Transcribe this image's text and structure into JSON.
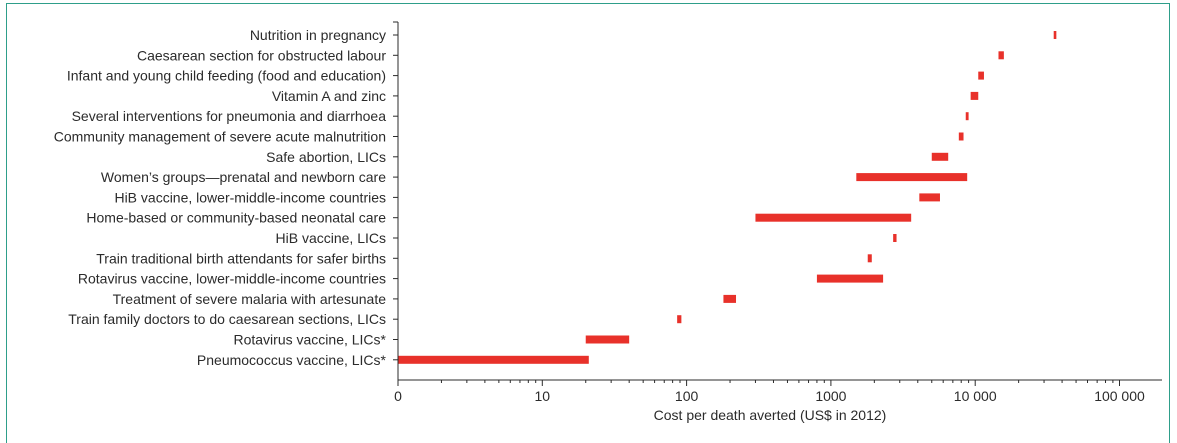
{
  "chart_data": {
    "type": "bar",
    "orientation": "horizontal-range",
    "xlabel": "Cost per death averted (US$ in 2012)",
    "x_scale": "log",
    "xlim": [
      1,
      200000
    ],
    "x_ticks": [
      {
        "value": 1,
        "label": "0"
      },
      {
        "value": 10,
        "label": "10"
      },
      {
        "value": 100,
        "label": "100"
      },
      {
        "value": 1000,
        "label": "1000"
      },
      {
        "value": 10000,
        "label": "10 000"
      },
      {
        "value": 100000,
        "label": "100 000"
      }
    ],
    "color": "#e8312a",
    "series": [
      {
        "category": "Nutrition in pregnancy",
        "low": 35000,
        "high": 36500
      },
      {
        "category": "Caesarean section for obstructed labour",
        "low": 14500,
        "high": 15800
      },
      {
        "category": "Infant and young child feeding (food and education)",
        "low": 10500,
        "high": 11500
      },
      {
        "category": "Vitamin A and zinc",
        "low": 9300,
        "high": 10500
      },
      {
        "category": "Several interventions for pneumonia and diarrhoea",
        "low": 8600,
        "high": 9000
      },
      {
        "category": "Community management of severe acute malnutrition",
        "low": 7700,
        "high": 8300
      },
      {
        "category": "Safe abortion, LICs",
        "low": 5000,
        "high": 6500
      },
      {
        "category": "Women’s groups—prenatal and newborn care",
        "low": 1500,
        "high": 8800
      },
      {
        "category": "HiB vaccine, lower-middle-income countries",
        "low": 4100,
        "high": 5700
      },
      {
        "category": "Home-based or community-based neonatal care",
        "low": 300,
        "high": 3600
      },
      {
        "category": "HiB vaccine, LICs",
        "low": 2700,
        "high": 2850
      },
      {
        "category": "Train traditional birth attendants for safer births",
        "low": 1800,
        "high": 1920
      },
      {
        "category": "Rotavirus vaccine, lower-middle-income countries",
        "low": 800,
        "high": 2300
      },
      {
        "category": "Treatment of severe malaria with artesunate",
        "low": 180,
        "high": 220
      },
      {
        "category": "Train family doctors to do caesarean sections, LICs",
        "low": 86,
        "high": 92
      },
      {
        "category": "Rotavirus vaccine, LICs*",
        "low": 20,
        "high": 40
      },
      {
        "category": "Pneumococcus vaccine, LICs*",
        "low": 1,
        "high": 21
      }
    ]
  }
}
